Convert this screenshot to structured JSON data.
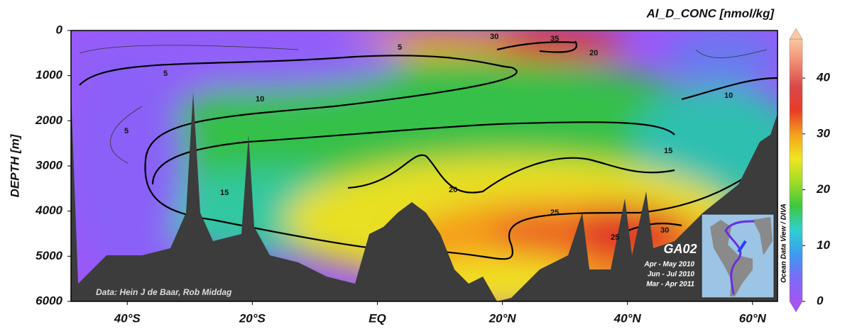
{
  "chart_data": {
    "type": "contour",
    "title": "Al_D_CONC [nmol/kg]",
    "y_label": "DEPTH [m]",
    "credit": "Data: Hein J de Baar, Rob Middag",
    "cruise": "GA02",
    "periods": [
      "Apr - May 2010",
      "Jun - Jul 2010",
      "Mar - Apr 2011"
    ],
    "side_note": "Ocean Data View / DIVA",
    "xlim": [
      -49,
      64
    ],
    "xticks": [
      {
        "value": -40,
        "label": "40°S"
      },
      {
        "value": -20,
        "label": "20°S"
      },
      {
        "value": 0,
        "label": "EQ"
      },
      {
        "value": 20,
        "label": "20°N"
      },
      {
        "value": 40,
        "label": "40°N"
      },
      {
        "value": 60,
        "label": "60°N"
      }
    ],
    "ylim": [
      0,
      6000
    ],
    "yticks": [
      0,
      1000,
      2000,
      3000,
      4000,
      5000,
      6000
    ],
    "y_inverted": true,
    "clim": [
      0,
      47
    ],
    "cticks": [
      0,
      10,
      20,
      30,
      40
    ],
    "colors": [
      "#a455f5",
      "#7a6cf5",
      "#3c9cf0",
      "#2fd0d0",
      "#3cc83c",
      "#a0dc28",
      "#f0e61e",
      "#f5a01e",
      "#e83c28",
      "#d84848",
      "#f08a70",
      "#fbc8a0"
    ],
    "contour_levels": [
      5,
      10,
      15,
      20,
      25,
      30,
      35
    ]
  }
}
